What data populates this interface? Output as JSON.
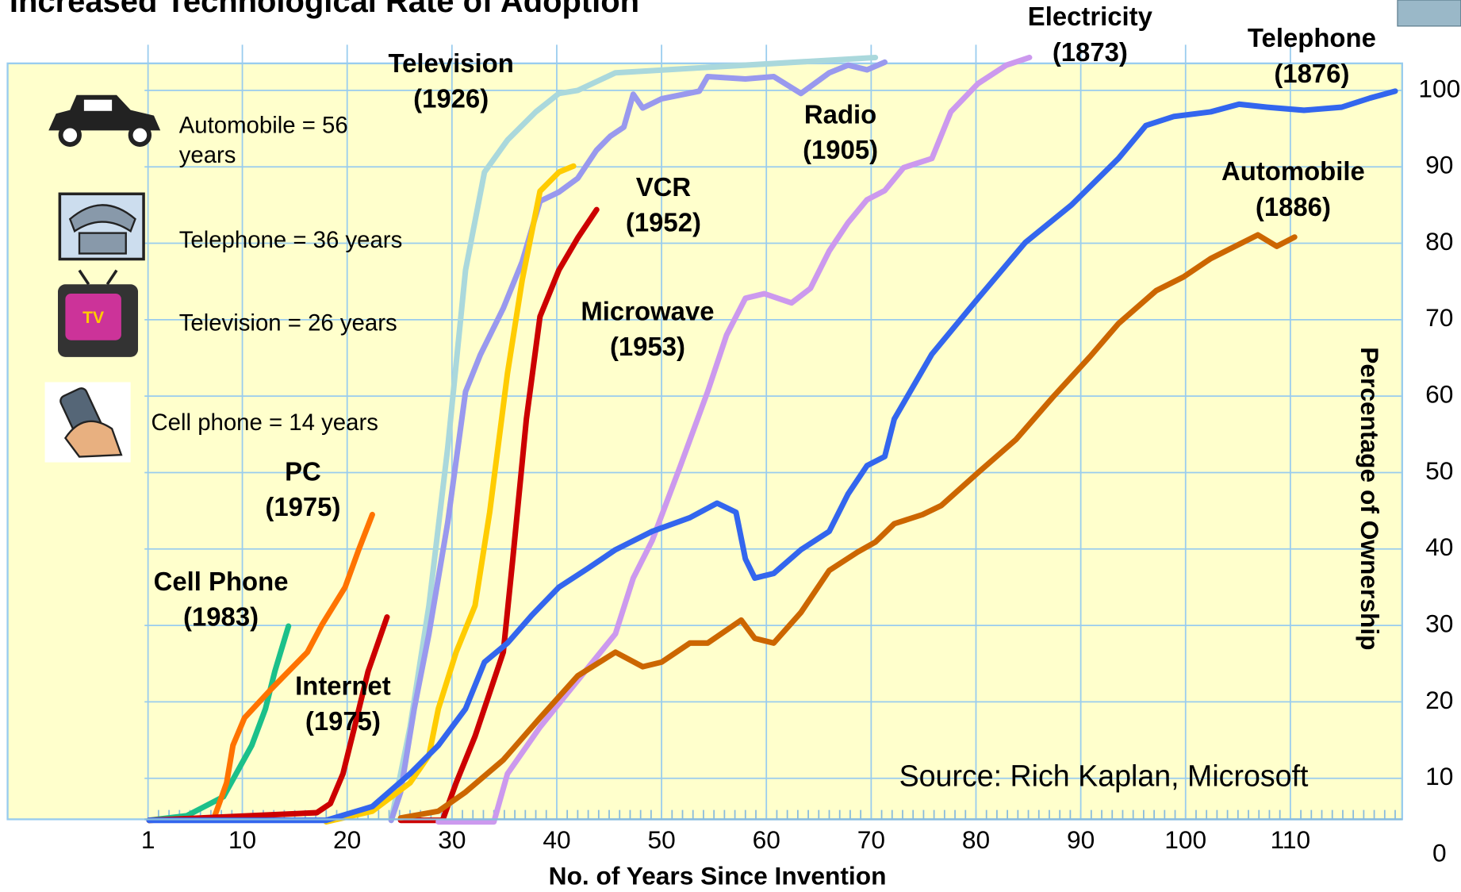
{
  "chart_data": {
    "type": "line",
    "title": "Increased Technological Rate of Adoption",
    "x_label": "No. of Years Since Invention",
    "y_label": "Percentage of Ownership",
    "source": "Source: Rich Kaplan, Microsoft",
    "xlim": [
      0,
      120
    ],
    "ylim": [
      0,
      105
    ],
    "xticks": [
      1,
      10,
      20,
      30,
      40,
      50,
      60,
      70,
      80,
      90,
      100,
      110
    ],
    "yticks": [
      0,
      10,
      20,
      30,
      40,
      50,
      60,
      70,
      80,
      90,
      100
    ],
    "grid": true,
    "notes": [
      {
        "lines": [
          "Automobile = 56",
          "years"
        ]
      },
      {
        "lines": [
          "Telephone = 36  years"
        ]
      },
      {
        "lines": [
          "Television = 26 years"
        ]
      },
      {
        "lines": [
          "Cell phone = 14 years"
        ]
      }
    ],
    "series": [
      {
        "name": "Cell Phone",
        "year": "(1983)",
        "color": "#1bc08a",
        "x": [
          1.1,
          4.7,
          8.2,
          10.9,
          12.2,
          13.1,
          14.4
        ],
        "values": [
          4.5,
          5.1,
          7.6,
          14.3,
          19.1,
          24.0,
          29.9
        ]
      },
      {
        "name": "PC",
        "year": "(1975)",
        "color": "#ff7300",
        "x": [
          1.1,
          7.3,
          8.5,
          9.1,
          10.2,
          12.7,
          16.2,
          17.6,
          19.8,
          21.1,
          22.4
        ],
        "values": [
          4.5,
          4.8,
          9.4,
          14.3,
          17.9,
          21.6,
          26.5,
          30.1,
          35.0,
          39.9,
          44.5
        ]
      },
      {
        "name": "Internet",
        "year": "(1975)",
        "color": "#cc0000",
        "x": [
          1.1,
          17.1,
          18.4,
          19.6,
          20.7,
          22.0,
          23.8
        ],
        "values": [
          4.5,
          5.5,
          6.7,
          10.6,
          16.7,
          24.0,
          31.1
        ]
      },
      {
        "name": "Television",
        "year": "(1926)",
        "color": "#aad8dc",
        "x": [
          24.2,
          26.0,
          27.8,
          29.6,
          31.3,
          33.1,
          35.3,
          38.0,
          40.2,
          42.0,
          45.6,
          70.4
        ],
        "values": [
          4.5,
          16.7,
          32.6,
          53.3,
          76.5,
          89.3,
          93.5,
          97.2,
          99.6,
          100,
          102.3,
          104.3
        ]
      },
      {
        "name": "Radio",
        "year": "(1905)",
        "color": "#9999ee",
        "x": [
          24.2,
          25.1,
          26.4,
          27.8,
          29.6,
          31.3,
          32.7,
          34.9,
          36.7,
          38.4,
          40.2,
          42.0,
          43.8,
          45.1,
          46.4,
          47.3,
          48.2,
          50.0,
          53.6,
          54.4,
          58.0,
          60.7,
          63.3,
          66.0,
          67.8,
          69.6,
          71.3
        ],
        "values": [
          4.5,
          8.2,
          19.1,
          28.9,
          43.5,
          60.6,
          65.4,
          71.5,
          77.6,
          85.5,
          86.7,
          88.5,
          92.2,
          94.0,
          95.2,
          99.5,
          97.7,
          98.9,
          99.9,
          101.8,
          101.5,
          101.8,
          99.6,
          102.3,
          103.3,
          102.7,
          103.7
        ]
      },
      {
        "name": "VCR",
        "year": "(1952)",
        "color": "#ffcc00",
        "x": [
          18.0,
          22.4,
          26.0,
          27.8,
          28.7,
          30.4,
          32.2,
          33.6,
          35.3,
          36.7,
          38.4,
          40.2,
          41.6
        ],
        "values": [
          4.3,
          5.7,
          9.4,
          13.0,
          19.1,
          26.5,
          32.6,
          44.8,
          63.0,
          75.2,
          86.8,
          89.3,
          90.1
        ]
      },
      {
        "name": "Microwave",
        "year": "(1953)",
        "color": "#cc0000",
        "x": [
          25.1,
          29.1,
          30.4,
          32.2,
          34.9,
          35.8,
          37.1,
          38.4,
          40.2,
          42.0,
          43.8
        ],
        "values": [
          4.5,
          4.5,
          9.4,
          15.5,
          26.5,
          38.7,
          57.0,
          70.4,
          76.5,
          80.7,
          84.4
        ]
      },
      {
        "name": "Electricity",
        "year": "(1873)",
        "color": "#cc99ee",
        "x": [
          28.7,
          34.0,
          35.3,
          38.4,
          42.0,
          45.6,
          47.3,
          49.1,
          51.8,
          54.4,
          56.2,
          58.0,
          59.8,
          62.4,
          64.2,
          66.0,
          67.8,
          69.6,
          71.3,
          73.1,
          75.8,
          77.6,
          80.2,
          82.9,
          85.1
        ],
        "values": [
          4.3,
          4.3,
          10.6,
          16.7,
          22.8,
          28.9,
          36.2,
          41.1,
          50.9,
          60.6,
          68.0,
          72.8,
          73.4,
          72.2,
          74.1,
          79.0,
          82.7,
          85.7,
          86.9,
          89.9,
          91.1,
          97.2,
          100.9,
          103.3,
          104.3
        ]
      },
      {
        "name": "Telephone",
        "year": "(1876)",
        "color": "#3366ee",
        "x": [
          1.1,
          18.0,
          22.4,
          26.0,
          28.7,
          31.3,
          33.1,
          35.3,
          37.6,
          40.2,
          42.9,
          45.6,
          49.1,
          52.7,
          55.3,
          57.1,
          58.0,
          58.9,
          60.7,
          63.3,
          66.0,
          67.8,
          69.6,
          71.3,
          72.2,
          75.8,
          80.2,
          84.7,
          89.1,
          93.6,
          96.2,
          98.9,
          102.4,
          105.1,
          107.8,
          111.3,
          114.9,
          117.6,
          120
        ],
        "values": [
          4.5,
          4.5,
          6.3,
          10.6,
          14.3,
          19.1,
          25.2,
          27.7,
          31.3,
          35.0,
          37.4,
          39.9,
          42.3,
          44.1,
          46.0,
          44.8,
          38.7,
          36.2,
          36.8,
          39.9,
          42.3,
          47.2,
          50.9,
          52.1,
          57.0,
          65.5,
          72.8,
          80.1,
          85.0,
          91.1,
          95.4,
          96.6,
          97.2,
          98.2,
          97.8,
          97.4,
          97.8,
          99.0,
          99.9
        ]
      },
      {
        "name": "Automobile",
        "year": "(1886)",
        "color": "#cc6600",
        "x": [
          25.1,
          28.7,
          31.3,
          34.9,
          38.4,
          42.0,
          45.6,
          48.2,
          50.0,
          52.7,
          54.4,
          57.6,
          58.9,
          60.7,
          63.3,
          66.0,
          68.7,
          70.4,
          72.2,
          74.9,
          76.7,
          80.2,
          83.8,
          87.3,
          90.9,
          93.6,
          97.2,
          99.8,
          102.4,
          106.9,
          108.7,
          110.4
        ],
        "values": [
          4.8,
          5.7,
          8.2,
          12.4,
          17.9,
          23.4,
          26.5,
          24.6,
          25.2,
          27.7,
          27.7,
          30.7,
          28.3,
          27.7,
          31.7,
          37.2,
          39.6,
          40.9,
          43.3,
          44.5,
          45.7,
          50.0,
          54.3,
          59.8,
          65.2,
          69.5,
          73.8,
          75.6,
          78.0,
          81.1,
          79.6,
          80.8
        ]
      }
    ]
  }
}
